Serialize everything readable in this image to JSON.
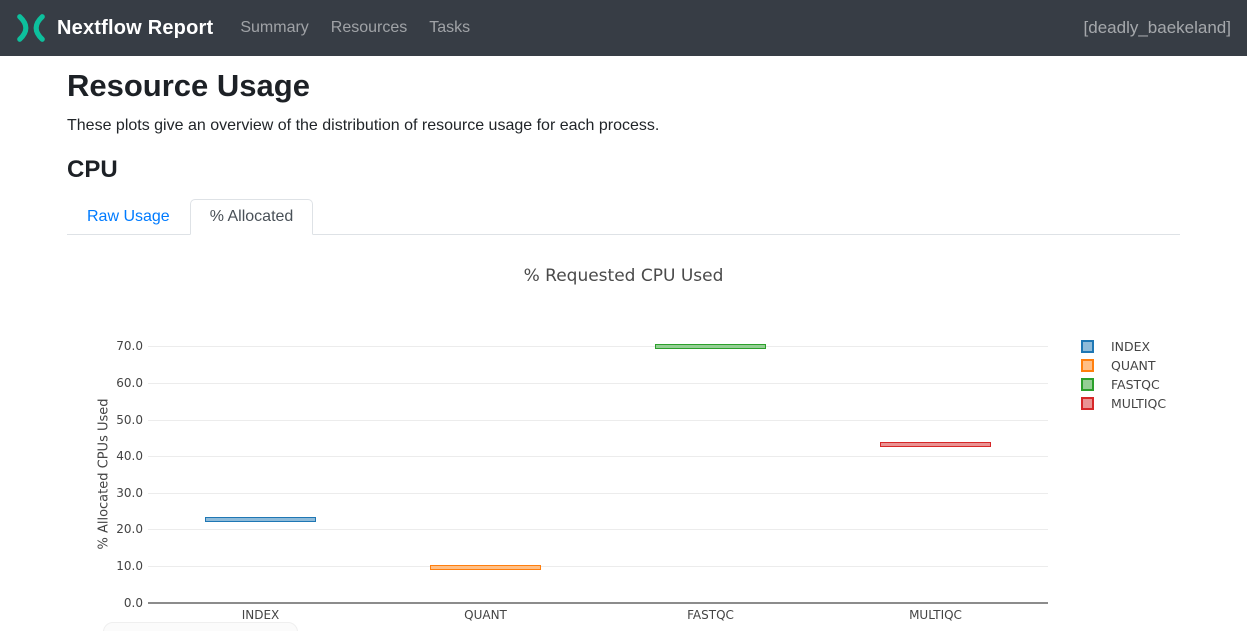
{
  "header": {
    "brand": "Nextflow Report",
    "logo_color": "#0dc09d",
    "bg_color": "#373d45",
    "nav": [
      {
        "label": "Summary"
      },
      {
        "label": "Resources"
      },
      {
        "label": "Tasks"
      }
    ],
    "run_name": "[deadly_baekeland]"
  },
  "page": {
    "title": "Resource Usage",
    "subtitle": "These plots give an overview of the distribution of resource usage for each process.",
    "section_title": "CPU"
  },
  "tabs": [
    {
      "label": "Raw Usage",
      "active": false
    },
    {
      "label": "% Allocated",
      "active": true
    }
  ],
  "chart_data": {
    "type": "box",
    "title": "% Requested CPU Used",
    "xlabel": "",
    "ylabel": "% Allocated CPUs Used",
    "categories": [
      "INDEX",
      "QUANT",
      "FASTQC",
      "MULTIQC"
    ],
    "series": [
      {
        "name": "INDEX",
        "value": 22.8,
        "color": "#1f77b4",
        "fill": "#8fbbd9"
      },
      {
        "name": "QUANT",
        "value": 9.7,
        "color": "#ff7f0e",
        "fill": "#ffbf86"
      },
      {
        "name": "FASTQC",
        "value": 69.9,
        "color": "#2ca02c",
        "fill": "#95cf95"
      },
      {
        "name": "MULTIQC",
        "value": 43.1,
        "color": "#d62728",
        "fill": "#ea9393"
      }
    ],
    "yticks": [
      0.0,
      10.0,
      20.0,
      30.0,
      40.0,
      50.0,
      60.0,
      70.0
    ],
    "ylim": [
      0,
      74.3
    ],
    "grid": true,
    "legend_position": "right"
  }
}
